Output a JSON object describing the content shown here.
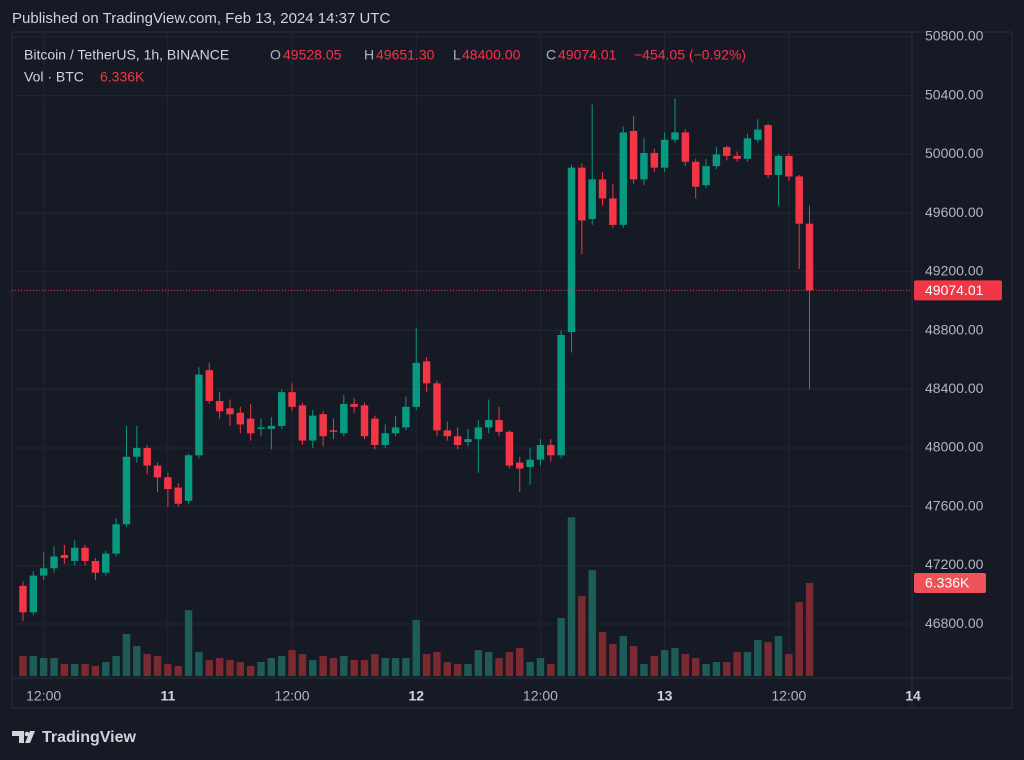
{
  "header": {
    "published": "Published on TradingView.com, Feb 13, 2024 14:37 UTC"
  },
  "chart_data": {
    "type": "candlestick",
    "title": "Bitcoin / TetherUS, 1h, BINANCE",
    "legend": {
      "o_label": "O",
      "h_label": "H",
      "l_label": "L",
      "c_label": "C",
      "open": 49528.05,
      "high": {
        "value": 49651.3,
        "label": "49651.30"
      },
      "low": {
        "value": 48400,
        "label": "48400.00"
      },
      "close": 49074.01,
      "change_text": "−454.05 (−0.92%)"
    },
    "volume_title": "Vol · BTC",
    "volume_value_label": "6.336K",
    "up_color": "#089981",
    "down_color": "#f23645",
    "volume_up_color": "#1e5c57",
    "volume_down_color": "#7b2a31",
    "xlim": [
      -1.06,
      85.9
    ],
    "xticks": [
      {
        "value": 2,
        "label": "12:00"
      },
      {
        "value": 14,
        "label": "11"
      },
      {
        "value": 26,
        "label": "12:00"
      },
      {
        "value": 38,
        "label": "12"
      },
      {
        "value": 50,
        "label": "12:00"
      },
      {
        "value": 62,
        "label": "13"
      },
      {
        "value": 74,
        "label": "12:00"
      },
      {
        "value": 86,
        "label": "14"
      }
    ],
    "ylim": [
      46446,
      50848
    ],
    "yticks": [
      {
        "value": 46800,
        "label": "46800.00"
      },
      {
        "value": 47200,
        "label": "47200.00"
      },
      {
        "value": 47600,
        "label": "47600.00"
      },
      {
        "value": 48000,
        "label": "48000.00"
      },
      {
        "value": 48400,
        "label": "48400.00"
      },
      {
        "value": 48800,
        "label": "48800.00"
      },
      {
        "value": 49200,
        "label": "49200.00"
      },
      {
        "value": 49600,
        "label": "49600.00"
      },
      {
        "value": 50000,
        "label": "50000.00"
      },
      {
        "value": 50400,
        "label": "50400.00"
      },
      {
        "value": 50800,
        "label": "50800.00"
      }
    ],
    "volume_ylim": [
      0,
      44000
    ],
    "grid": true,
    "open": [
      47060,
      46880,
      47130,
      47180,
      47270,
      47230,
      47320,
      47230,
      47150,
      47280,
      47480,
      47940,
      48000,
      47880,
      47800,
      47730,
      47640,
      47950,
      48530,
      48320,
      48270,
      48240,
      48200,
      48130,
      48130,
      48150,
      48380,
      48290,
      48050,
      48230,
      48120,
      48100,
      48300,
      48290,
      48200,
      48020,
      48100,
      48140,
      48280,
      48590,
      48440,
      48120,
      48080,
      48040,
      48060,
      48140,
      48190,
      48110,
      47900,
      47870,
      47920,
      48020,
      47950,
      48790,
      49910,
      49560,
      49830,
      49700,
      49520,
      50160,
      49830,
      50010,
      49910,
      50100,
      50150,
      49950,
      49790,
      49920,
      50050,
      49990,
      49970,
      50100,
      50200,
      49860,
      49990,
      49850,
      49528.05
    ],
    "high": [
      47090,
      47160,
      47290,
      47330,
      47340,
      47370,
      47340,
      47250,
      47300,
      47520,
      48150,
      48150,
      48020,
      47900,
      47830,
      47760,
      47960,
      48550,
      48580,
      48380,
      48330,
      48280,
      48300,
      48200,
      48210,
      48400,
      48440,
      48310,
      48260,
      48250,
      48200,
      48360,
      48340,
      48310,
      48220,
      48160,
      48220,
      48350,
      48820,
      48620,
      48460,
      48180,
      48140,
      48130,
      48190,
      48330,
      48280,
      48120,
      47940,
      48000,
      48060,
      48060,
      48800,
      49930,
      49940,
      50340,
      49880,
      49800,
      50190,
      50260,
      50110,
      50040,
      50150,
      50380,
      50170,
      49970,
      49970,
      50050,
      50060,
      50020,
      50140,
      50240,
      50210,
      50000,
      50010,
      49860,
      49651.3
    ],
    "low": [
      46820,
      46860,
      47100,
      47150,
      47210,
      47200,
      47200,
      47100,
      47130,
      47260,
      47460,
      47900,
      47820,
      47700,
      47600,
      47600,
      47620,
      47930,
      48300,
      48200,
      48150,
      48100,
      48050,
      48080,
      47990,
      48130,
      48250,
      48020,
      48000,
      48010,
      48060,
      48080,
      48240,
      48060,
      47990,
      48000,
      48080,
      48120,
      48260,
      48380,
      48080,
      48050,
      47990,
      48010,
      47830,
      48100,
      48080,
      47860,
      47700,
      47750,
      47880,
      47910,
      47930,
      48650,
      49320,
      49520,
      49650,
      49500,
      49500,
      49800,
      49790,
      49880,
      49880,
      50080,
      49920,
      49700,
      49770,
      49900,
      49960,
      49950,
      49950,
      50080,
      49840,
      49650,
      49820,
      49220,
      48400
    ],
    "close": [
      46880,
      47130,
      47180,
      47260,
      47250,
      47320,
      47230,
      47150,
      47280,
      47480,
      47940,
      48000,
      47880,
      47800,
      47720,
      47620,
      47950,
      48500,
      48320,
      48250,
      48230,
      48160,
      48100,
      48140,
      48150,
      48380,
      48280,
      48050,
      48220,
      48080,
      48110,
      48300,
      48280,
      48080,
      48020,
      48100,
      48140,
      48280,
      48580,
      48440,
      48120,
      48080,
      48020,
      48060,
      48140,
      48190,
      48110,
      47880,
      47860,
      47920,
      48020,
      47950,
      48770,
      49910,
      49550,
      49830,
      49700,
      49520,
      50150,
      49830,
      50010,
      49910,
      50100,
      50150,
      49950,
      49780,
      49920,
      50000,
      49990,
      49970,
      50110,
      50170,
      49860,
      49990,
      49850,
      49528.05,
      49074.01
    ],
    "volume": [
      1360,
      1360,
      1224,
      1224,
      816,
      816,
      816,
      680,
      952,
      1360,
      2856,
      2040,
      1496,
      1360,
      816,
      680,
      4488,
      1632,
      1088,
      1224,
      1088,
      952,
      680,
      952,
      1224,
      1360,
      1768,
      1496,
      1088,
      1360,
      1224,
      1360,
      1088,
      1088,
      1496,
      1224,
      1224,
      1224,
      3808,
      1496,
      1632,
      952,
      816,
      816,
      1768,
      1632,
      1224,
      1632,
      1904,
      952,
      1224,
      816,
      3944,
      10812,
      5440,
      7208,
      2992,
      2176,
      2720,
      2040,
      816,
      1360,
      1768,
      1904,
      1496,
      1224,
      816,
      952,
      952,
      1632,
      1632,
      2448,
      2312,
      2720,
      1496,
      5032,
      6336
    ]
  },
  "footer": {
    "brand": "TradingView"
  }
}
